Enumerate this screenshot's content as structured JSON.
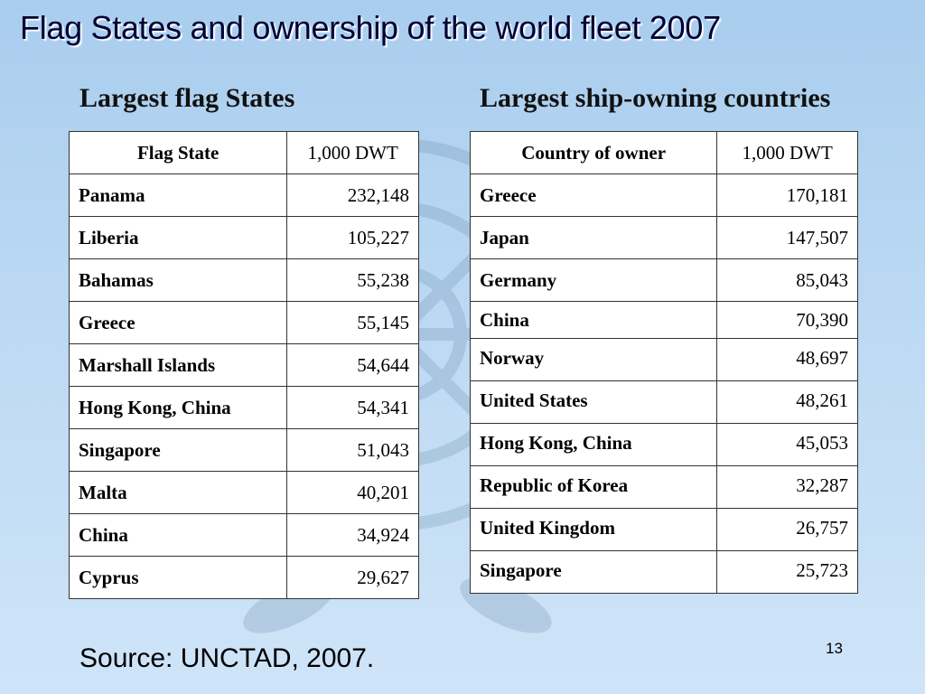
{
  "slide": {
    "title": "Flag States and ownership of the world fleet 2007",
    "source": "Source: UNCTAD, 2007.",
    "page_number": "13"
  },
  "flag_states": {
    "heading": "Largest flag States",
    "columns": [
      "Flag State",
      "1,000 DWT"
    ],
    "rows": [
      {
        "name": "Panama",
        "value": "232,148"
      },
      {
        "name": "Liberia",
        "value": "105,227"
      },
      {
        "name": "Bahamas",
        "value": "55,238"
      },
      {
        "name": "Greece",
        "value": "55,145"
      },
      {
        "name": "Marshall Islands",
        "value": "54,644"
      },
      {
        "name": "Hong Kong, China",
        "value": "54,341"
      },
      {
        "name": "Singapore",
        "value": "51,043"
      },
      {
        "name": "Malta",
        "value": "40,201"
      },
      {
        "name": "China",
        "value": "34,924"
      },
      {
        "name": "Cyprus",
        "value": "29,627"
      }
    ]
  },
  "owning_countries": {
    "heading": "Largest ship-owning countries",
    "columns": [
      "Country of owner",
      "1,000 DWT"
    ],
    "rows": [
      {
        "name": "Greece",
        "value": "170,181"
      },
      {
        "name": "Japan",
        "value": "147,507"
      },
      {
        "name": "Germany",
        "value": "85,043"
      },
      {
        "name": "China",
        "value": "70,390"
      },
      {
        "name": "Norway",
        "value": "48,697"
      },
      {
        "name": "United States",
        "value": "48,261"
      },
      {
        "name": "Hong Kong, China",
        "value": "45,053"
      },
      {
        "name": "Republic of Korea",
        "value": "32,287"
      },
      {
        "name": "United Kingdom",
        "value": "26,757"
      },
      {
        "name": "Singapore",
        "value": "25,723"
      }
    ]
  },
  "colors": {
    "background_top": "#a9cdee",
    "background_bottom": "#cfe4f8",
    "title_text": "#000033",
    "table_background": "#ffffff"
  },
  "icons": [
    "un-emblem-watermark"
  ]
}
